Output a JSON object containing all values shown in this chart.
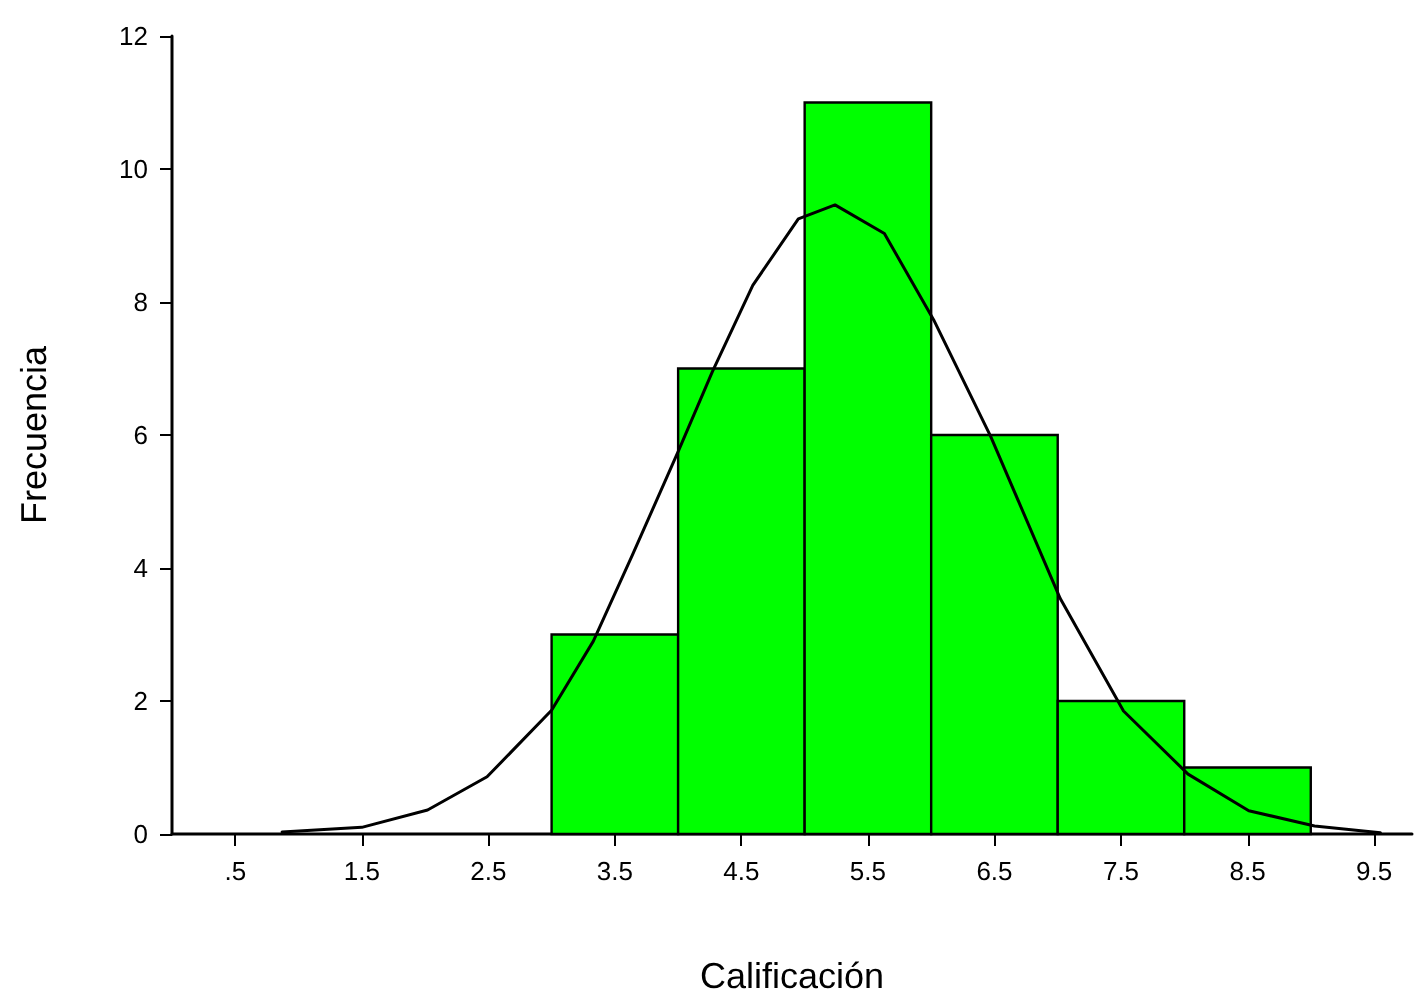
{
  "chart_data": {
    "type": "histogram",
    "xlabel": "Calificación",
    "ylabel": "Frecuencia",
    "bins": [
      3,
      4,
      5,
      6,
      7,
      8,
      9
    ],
    "values": [
      3,
      7,
      11,
      6,
      2,
      1
    ],
    "color": "#00ff00",
    "series": [
      {
        "type": "line",
        "color": "#000000",
        "x": [
          0.87,
          1.5,
          2.02,
          2.49,
          3.0,
          3.33,
          3.64,
          4.0,
          4.27,
          4.59,
          4.95,
          5.24,
          5.63,
          6.02,
          6.47,
          7.02,
          7.52,
          8.03,
          8.51,
          9.03,
          9.55
        ],
        "values": [
          0.03,
          0.1,
          0.36,
          0.86,
          1.86,
          2.9,
          4.2,
          5.75,
          6.95,
          8.25,
          9.25,
          9.46,
          9.03,
          7.73,
          5.98,
          3.54,
          1.85,
          0.9,
          0.35,
          0.12,
          0.02
        ]
      }
    ],
    "xlim": [
      0,
      9.8
    ],
    "xticks": [
      {
        "value": 0.5,
        "label": ".5"
      },
      1.5,
      2.5,
      3.5,
      4.5,
      5.5,
      6.5,
      7.5,
      8.5,
      9.5
    ],
    "ylim": [
      0,
      12
    ],
    "yticks": [
      0,
      2,
      4,
      6,
      8,
      10,
      12
    ],
    "grid": false,
    "marker": "none",
    "line_style": "solid"
  }
}
